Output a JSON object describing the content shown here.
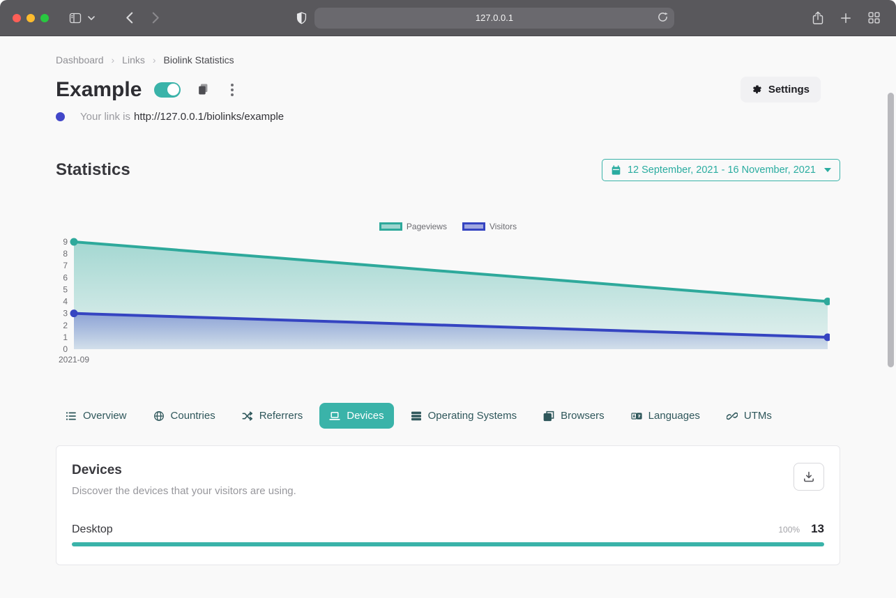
{
  "browser": {
    "url": "127.0.0.1"
  },
  "breadcrumb": {
    "items": [
      "Dashboard",
      "Links",
      "Biolink Statistics"
    ]
  },
  "header": {
    "title": "Example",
    "toggle_on": true,
    "link_label": "Your link is",
    "link_url": "http://127.0.0.1/biolinks/example",
    "settings_label": "Settings"
  },
  "statistics": {
    "heading": "Statistics",
    "date_range": "12 September, 2021 - 16 November, 2021"
  },
  "chart_data": {
    "type": "area",
    "x_ticks": [
      "2021-09"
    ],
    "series": [
      {
        "name": "Pageviews",
        "values": [
          9,
          4
        ],
        "color": "#2ea99b"
      },
      {
        "name": "Visitors",
        "values": [
          3,
          1
        ],
        "color": "#3544c1"
      }
    ],
    "ylim": [
      0,
      9
    ],
    "y_ticks": [
      0,
      1,
      2,
      3,
      4,
      5,
      6,
      7,
      8,
      9
    ],
    "legend_position": "top",
    "grid": false
  },
  "tabs": [
    {
      "label": "Overview",
      "icon": "list-icon",
      "active": false
    },
    {
      "label": "Countries",
      "icon": "globe-icon",
      "active": false
    },
    {
      "label": "Referrers",
      "icon": "shuffle-icon",
      "active": false
    },
    {
      "label": "Devices",
      "icon": "laptop-icon",
      "active": true
    },
    {
      "label": "Operating Systems",
      "icon": "server-icon",
      "active": false
    },
    {
      "label": "Browsers",
      "icon": "window-icon",
      "active": false
    },
    {
      "label": "Languages",
      "icon": "language-icon",
      "active": false
    },
    {
      "label": "UTMs",
      "icon": "link-icon",
      "active": false
    }
  ],
  "devices_card": {
    "title": "Devices",
    "subtitle": "Discover the devices that your visitors are using.",
    "rows": [
      {
        "label": "Desktop",
        "percent": "100%",
        "count": "13",
        "bar_pct": 100
      }
    ]
  },
  "colors": {
    "accent": "#3ab3a9",
    "pageviews": "#2ea99b",
    "visitors": "#3544c1",
    "traffic_lights": [
      "#ff5f57",
      "#febc2e",
      "#28c840"
    ]
  }
}
